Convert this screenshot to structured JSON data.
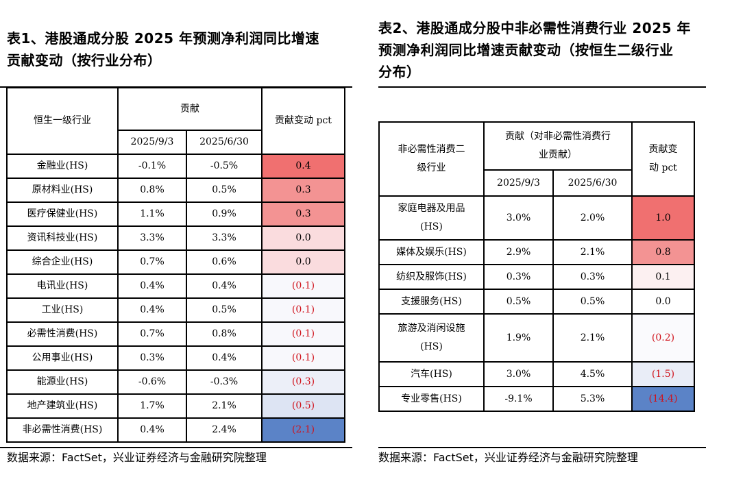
{
  "table1": {
    "title_line1": "表1、港股通成分股 2025 年预测净利润同比增速",
    "title_line2": "贡献变动（按行业分布）",
    "header_industry": "恒生一级行业",
    "header_contribution": "贡献",
    "header_change": "贡献变动 pct",
    "date_1": "2025/9/3",
    "date_2": "2025/6/30",
    "rows": [
      {
        "name": "金融业(HS)",
        "v1": "-0.1%",
        "v2": "-0.5%",
        "chg": "0.4",
        "neg": false,
        "color": "#f07070"
      },
      {
        "name": "原材料业(HS)",
        "v1": "0.8%",
        "v2": "0.5%",
        "chg": "0.3",
        "neg": false,
        "color": "#f39393"
      },
      {
        "name": "医疗保健业(HS)",
        "v1": "1.1%",
        "v2": "0.9%",
        "chg": "0.3",
        "neg": false,
        "color": "#f39393"
      },
      {
        "name": "资讯科技业(HS)",
        "v1": "3.3%",
        "v2": "3.3%",
        "chg": "0.0",
        "neg": false,
        "color": "#fadcde"
      },
      {
        "name": "综合企业(HS)",
        "v1": "0.7%",
        "v2": "0.6%",
        "chg": "0.0",
        "neg": false,
        "color": "#fadcde"
      },
      {
        "name": "电讯业(HS)",
        "v1": "0.4%",
        "v2": "0.4%",
        "chg": "(0.1)",
        "neg": true,
        "color": "#f8f8fc"
      },
      {
        "name": "工业(HS)",
        "v1": "0.4%",
        "v2": "0.5%",
        "chg": "(0.1)",
        "neg": true,
        "color": "#f8f8fc"
      },
      {
        "name": "必需性消费(HS)",
        "v1": "0.7%",
        "v2": "0.8%",
        "chg": "(0.1)",
        "neg": true,
        "color": "#f8f8fc"
      },
      {
        "name": "公用事业(HS)",
        "v1": "0.3%",
        "v2": "0.4%",
        "chg": "(0.1)",
        "neg": true,
        "color": "#f8f8fc"
      },
      {
        "name": "能源业(HS)",
        "v1": "-0.6%",
        "v2": "-0.3%",
        "chg": "(0.3)",
        "neg": true,
        "color": "#eceff8"
      },
      {
        "name": "地产建筑业(HS)",
        "v1": "1.7%",
        "v2": "2.1%",
        "chg": "(0.5)",
        "neg": true,
        "color": "#dde4f3"
      },
      {
        "name": "非必需性消费(HS)",
        "v1": "0.4%",
        "v2": "2.4%",
        "chg": "(2.1)",
        "neg": true,
        "color": "#5b83c7"
      }
    ],
    "source": "数据来源：FactSet，兴业证券经济与金融研究院整理"
  },
  "table2": {
    "title_line1": "表2、港股通成分股中非必需性消费行业 2025 年",
    "title_line2": "预测净利润同比增速贡献变动（按恒生二级行业",
    "title_line3": "分布）",
    "header_industry_l1": "非必需性消费二",
    "header_industry_l2": "级行业",
    "header_contribution_l1": "贡献（对非必需性消费行",
    "header_contribution_l2": "业贡献）",
    "header_change_l1": "贡献变",
    "header_change_l2": "动 pct",
    "date_1": "2025/9/3",
    "date_2": "2025/6/30",
    "rows": [
      {
        "name_l1": "家庭电器及用品",
        "name_l2": "(HS)",
        "v1": "3.0%",
        "v2": "2.0%",
        "chg": "1.0",
        "neg": false,
        "color": "#f07070"
      },
      {
        "name_l1": "媒体及娱乐(HS)",
        "name_l2": "",
        "v1": "2.9%",
        "v2": "2.1%",
        "chg": "0.8",
        "neg": false,
        "color": "#f39393"
      },
      {
        "name_l1": "纺织及服饰(HS)",
        "name_l2": "",
        "v1": "0.3%",
        "v2": "0.3%",
        "chg": "0.1",
        "neg": false,
        "color": "#fcf0f1"
      },
      {
        "name_l1": "支援服务(HS)",
        "name_l2": "",
        "v1": "0.5%",
        "v2": "0.5%",
        "chg": "0.0",
        "neg": false,
        "color": "#ffffff"
      },
      {
        "name_l1": "旅游及消闲设施",
        "name_l2": "(HS)",
        "v1": "1.9%",
        "v2": "2.1%",
        "chg": "(0.2)",
        "neg": true,
        "color": "#fafafd"
      },
      {
        "name_l1": "汽车(HS)",
        "name_l2": "",
        "v1": "3.0%",
        "v2": "4.5%",
        "chg": "(1.5)",
        "neg": true,
        "color": "#e9edf7"
      },
      {
        "name_l1": "专业零售(HS)",
        "name_l2": "",
        "v1": "-9.1%",
        "v2": "5.3%",
        "chg": "(14.4)",
        "neg": true,
        "color": "#5b83c7"
      }
    ],
    "source": "数据来源：FactSet，兴业证券经济与金融研究院整理"
  }
}
